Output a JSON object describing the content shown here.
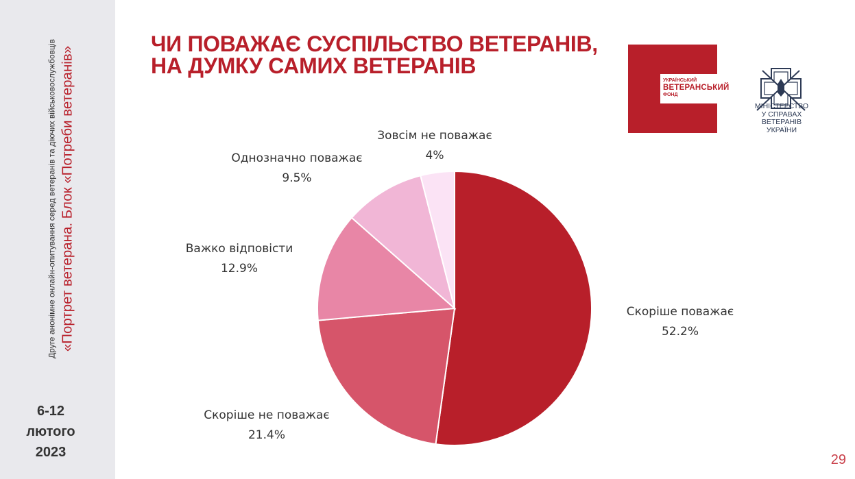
{
  "sidebar": {
    "survey_line": "Друге анонімне онлайн-опитування серед ветеранів та діючих військовослужбовців",
    "block_title": "«Портрет ветерана. Блок «Потреби ветеранів»",
    "date_line1": "6-12",
    "date_line2": "лютого",
    "date_line3": "2023"
  },
  "title": {
    "line1": "ЧИ ПОВАЖАЄ СУСПІЛЬСТВО ВЕТЕРАНІВ,",
    "line2": "НА ДУМКУ САМИХ ВЕТЕРАНІВ"
  },
  "logos": {
    "fund_line1": "УКРАЇНСЬКИЙ",
    "fund_line2": "ВЕТЕРАНСЬКИЙ",
    "fund_line3": "ФОНД",
    "ministry_lines": [
      "МІНІСТЕРСТВО",
      "У СПРАВАХ",
      "ВЕТЕРАНІВ",
      "УКРАЇНИ"
    ]
  },
  "page_number": "29",
  "chart_data": {
    "type": "pie",
    "unit": "%",
    "slices": [
      {
        "label": "Скоріше поважає",
        "value": 52.2,
        "display": "52.2%",
        "color": "#b81f2a"
      },
      {
        "label": "Скоріше не поважає",
        "value": 21.4,
        "display": "21.4%",
        "color": "#d6556a"
      },
      {
        "label": "Важко відповісти",
        "value": 12.9,
        "display": "12.9%",
        "color": "#e886a6"
      },
      {
        "label": "Однозначно поважає",
        "value": 9.5,
        "display": "9.5%",
        "color": "#f1b6d6"
      },
      {
        "label": "Зовсім не поважає",
        "value": 4,
        "display": "4%",
        "color": "#fbe3f5"
      }
    ]
  }
}
